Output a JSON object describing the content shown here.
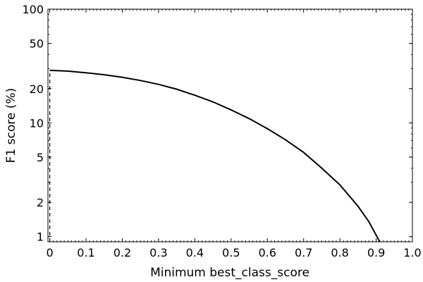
{
  "chart_data": {
    "type": "line",
    "title": "",
    "xlabel": "Minimum best_class_score",
    "ylabel": "F1 score (%)",
    "xlim": [
      -0.005,
      1.0
    ],
    "ylim": [
      0.9,
      100
    ],
    "yscale": "log",
    "grid": false,
    "legend": "none",
    "x_ticks": [
      0.0,
      0.1,
      0.2,
      0.3,
      0.4,
      0.5,
      0.6,
      0.7,
      0.8,
      0.9,
      1.0
    ],
    "x_tick_labels": [
      "0",
      "0.1",
      "0.2",
      "0.3",
      "0.4",
      "0.5",
      "0.6",
      "0.7",
      "0.8",
      "0.9",
      "1.0"
    ],
    "y_ticks": [
      1,
      2,
      5,
      10,
      20,
      50,
      100
    ],
    "y_tick_labels": [
      "1",
      "2",
      "5",
      "10",
      "20",
      "50",
      "100"
    ],
    "series": [
      {
        "style": "solid",
        "color": "#000000",
        "points": [
          [
            0.0,
            29.0
          ],
          [
            0.05,
            28.5
          ],
          [
            0.1,
            27.6
          ],
          [
            0.15,
            26.5
          ],
          [
            0.2,
            25.2
          ],
          [
            0.25,
            23.6
          ],
          [
            0.3,
            21.8
          ],
          [
            0.35,
            19.8
          ],
          [
            0.4,
            17.5
          ],
          [
            0.45,
            15.3
          ],
          [
            0.5,
            13.0
          ],
          [
            0.55,
            10.9
          ],
          [
            0.6,
            8.9
          ],
          [
            0.65,
            7.1
          ],
          [
            0.7,
            5.5
          ],
          [
            0.75,
            4.0
          ],
          [
            0.8,
            2.85
          ],
          [
            0.85,
            1.85
          ],
          [
            0.88,
            1.35
          ],
          [
            0.91,
            0.9
          ]
        ]
      },
      {
        "style": "dashed",
        "color": "#000000",
        "points": [
          [
            0.0,
            0.9
          ],
          [
            0.0,
            29.0
          ]
        ]
      }
    ]
  }
}
